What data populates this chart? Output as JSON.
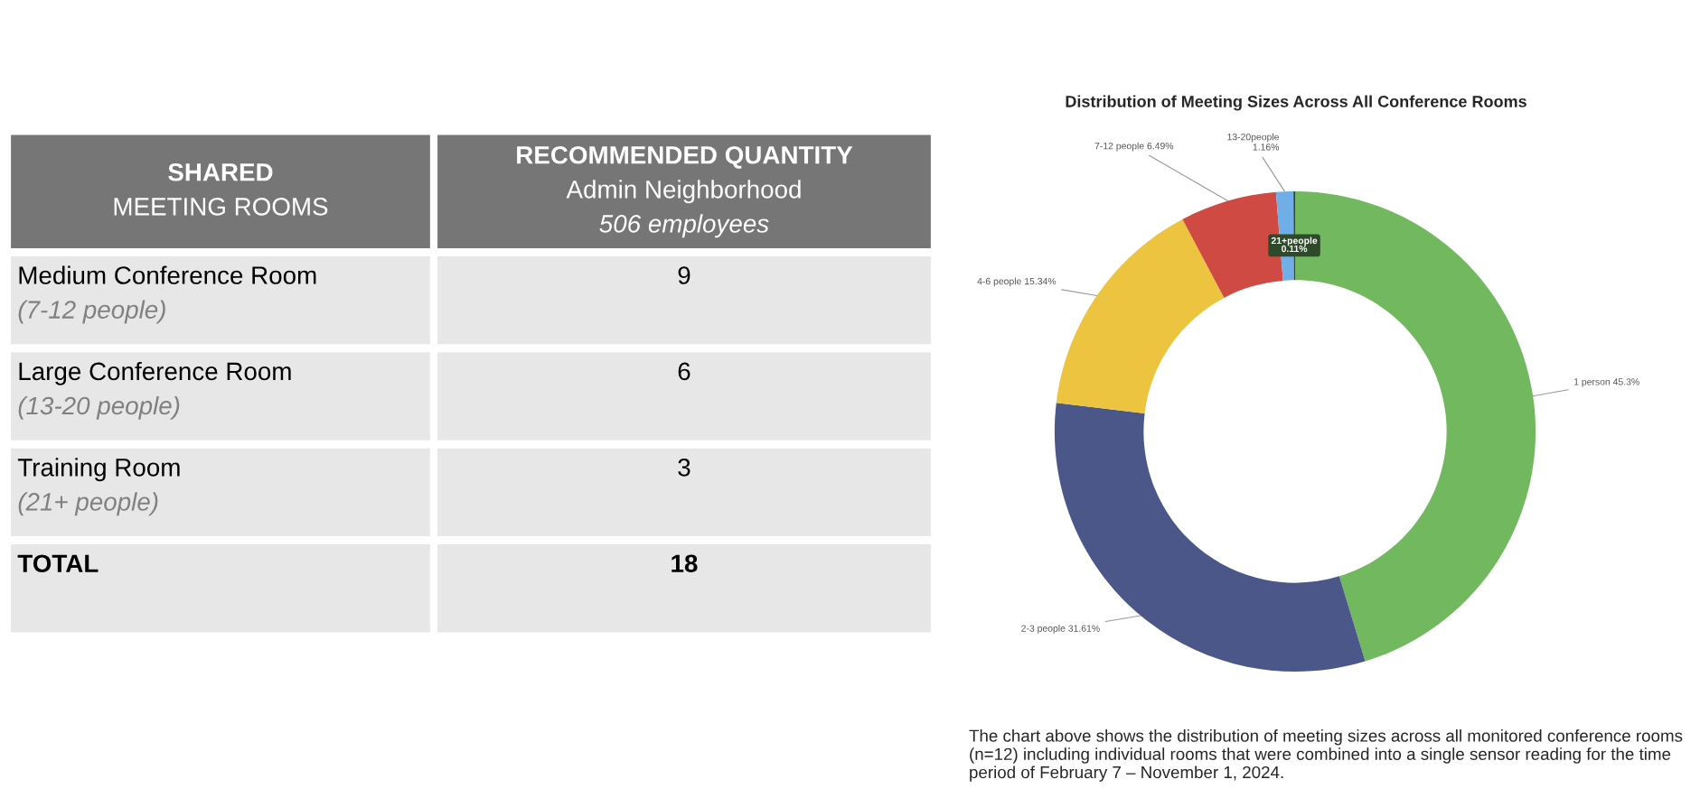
{
  "chart_data": [
    {
      "type": "other",
      "annotations": [
        "SHARED\nMEETING ROOMS",
        "RECOMMENDED QUANTITY\nAdmin Neighborhood\n506 employees",
        "Medium Conference Room\n(7-12 people)",
        "9",
        "Large Conference Room\n(13-20 people)",
        "6",
        "Training Room\n(21+ people)",
        "3",
        "TOTAL",
        "18"
      ]
    },
    {
      "type": "donut",
      "title": "Distribution of Meeting Sizes Across All Conference Rooms",
      "categories": [
        "1 person",
        "2-3 people",
        "4-6 people",
        "7-12 people",
        "13-20people",
        "21+people"
      ],
      "values": [
        45.3,
        31.61,
        15.34,
        6.49,
        1.16,
        0.11
      ],
      "value_labels": [
        "45.3%",
        "31.61%",
        "15.34%",
        "6.49%",
        "1.16%",
        "0.11%"
      ],
      "colors": [
        "#72b85f",
        "#4a5788",
        "#ecc440",
        "#cf4a42",
        "#6faee6",
        "#2f4a2a"
      ],
      "annotations": [
        "The chart above shows the distribution of meeting sizes across all monitored conference rooms (n=12) including individual rooms that were combined into a single sensor reading for the time period of February 7 – November 1, 2024."
      ]
    }
  ]
}
